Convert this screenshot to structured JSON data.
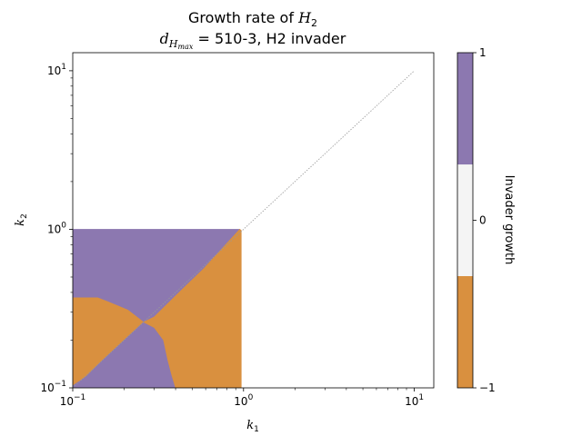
{
  "chart_data": {
    "type": "heatmap",
    "title_line1_prefix": "Growth rate of ",
    "title_line1_symbol": "H",
    "title_line1_subscript": "2",
    "title_line2_symbol": "d",
    "title_line2_subscript": "H",
    "title_line2_subsubscript": "max",
    "title_line2_rest": " = 510-3, H2 invader",
    "xlabel_symbol": "k",
    "xlabel_subscript": "1",
    "ylabel_symbol": "k",
    "ylabel_subscript": "2",
    "x_scale": "log",
    "y_scale": "log",
    "xlim": [
      0.1,
      13
    ],
    "ylim": [
      0.1,
      13
    ],
    "x_ticks": [
      {
        "value": 0.1,
        "label": "10",
        "exp": "−1"
      },
      {
        "value": 1,
        "label": "10",
        "exp": "0"
      },
      {
        "value": 10,
        "label": "10",
        "exp": "1"
      }
    ],
    "y_ticks": [
      {
        "value": 0.1,
        "label": "10",
        "exp": "−1"
      },
      {
        "value": 1,
        "label": "10",
        "exp": "0"
      },
      {
        "value": 10,
        "label": "10",
        "exp": "1"
      }
    ],
    "grid": false,
    "diagonal_line": {
      "from": [
        0.1,
        0.1
      ],
      "to": [
        10,
        10
      ],
      "style": "dotted",
      "color": "#888888"
    },
    "regions": [
      {
        "name": "positive-growth",
        "value": 1,
        "color": "#8c78b0",
        "polygon": [
          [
            0.1,
            1.0
          ],
          [
            0.95,
            1.0
          ],
          [
            0.58,
            0.56
          ],
          [
            0.42,
            0.4
          ],
          [
            0.3,
            0.28
          ],
          [
            0.26,
            0.26
          ],
          [
            0.21,
            0.31
          ],
          [
            0.16,
            0.35
          ],
          [
            0.14,
            0.37
          ],
          [
            0.1,
            0.37
          ]
        ]
      },
      {
        "name": "negative-growth",
        "value": -1,
        "color": "#d9903f",
        "polygon": [
          [
            0.1,
            0.37
          ],
          [
            0.14,
            0.37
          ],
          [
            0.16,
            0.35
          ],
          [
            0.21,
            0.31
          ],
          [
            0.26,
            0.26
          ],
          [
            0.2,
            0.2
          ],
          [
            0.15,
            0.15
          ],
          [
            0.12,
            0.118
          ],
          [
            0.1,
            0.103
          ]
        ]
      },
      {
        "name": "positive-growth",
        "value": 1,
        "color": "#8c78b0",
        "polygon": [
          [
            0.1,
            0.103
          ],
          [
            0.12,
            0.118
          ],
          [
            0.15,
            0.15
          ],
          [
            0.2,
            0.2
          ],
          [
            0.26,
            0.26
          ],
          [
            0.3,
            0.24
          ],
          [
            0.34,
            0.2
          ],
          [
            0.36,
            0.15
          ],
          [
            0.38,
            0.12
          ],
          [
            0.4,
            0.1
          ],
          [
            0.1,
            0.1
          ]
        ]
      },
      {
        "name": "negative-growth",
        "value": -1,
        "color": "#d9903f",
        "polygon": [
          [
            0.26,
            0.26
          ],
          [
            0.3,
            0.28
          ],
          [
            0.42,
            0.4
          ],
          [
            0.58,
            0.56
          ],
          [
            0.95,
            1.0
          ],
          [
            0.97,
            0.985
          ],
          [
            0.97,
            0.1
          ],
          [
            0.4,
            0.1
          ],
          [
            0.38,
            0.12
          ],
          [
            0.36,
            0.15
          ],
          [
            0.34,
            0.2
          ],
          [
            0.3,
            0.24
          ]
        ]
      }
    ],
    "colorbar": {
      "label": "Invader growth",
      "vmin": -1,
      "vmax": 1,
      "bands": [
        {
          "from": -1,
          "to": -0.333,
          "color": "#d9903f"
        },
        {
          "from": -0.333,
          "to": 0.333,
          "color": "#f4f4f4"
        },
        {
          "from": 0.333,
          "to": 1,
          "color": "#8c78b0"
        }
      ],
      "ticks": [
        {
          "value": 1,
          "label": "1"
        },
        {
          "value": 0,
          "label": "0"
        },
        {
          "value": -1,
          "label": "−1"
        }
      ]
    }
  }
}
